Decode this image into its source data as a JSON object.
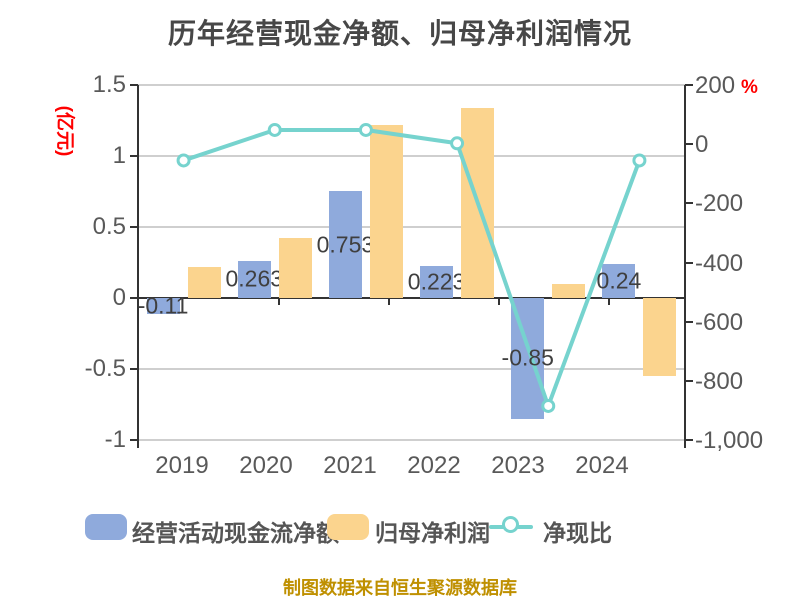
{
  "title": "历年经营现金净额、归母净利润情况",
  "source_note": "制图数据来自恒生聚源数据库",
  "colors": {
    "cashflow_bar": "#8FAADC",
    "profit_bar": "#FBD48E",
    "ratio_line": "#76D3CE",
    "marker_fill": "#FFFFFF",
    "gridline": "#CFCFCF",
    "axis": "#333333",
    "axis_text": "#595959",
    "title_text": "#474747",
    "unit_text": "#FF0000",
    "source_text": "#BF9000"
  },
  "chart_data": {
    "type": "bar",
    "subtype": "grouped bars with overlaid line on secondary axis",
    "categories": [
      "2019",
      "2020",
      "2021",
      "2022",
      "2023",
      "2024"
    ],
    "series": [
      {
        "name": "经营活动现金流净额",
        "type": "bar",
        "axis": "left",
        "values": [
          -0.11,
          0.263,
          0.753,
          0.223,
          -0.85,
          0.24
        ],
        "labels": [
          "-0.11",
          "0.263",
          "0.753",
          "0.223",
          "-0.85",
          "0.24"
        ]
      },
      {
        "name": "归母净利润",
        "type": "bar",
        "axis": "left",
        "values": [
          0.22,
          0.42,
          1.22,
          1.34,
          0.1,
          -0.55
        ],
        "labels": [
          "",
          "",
          "",
          "",
          "",
          ""
        ]
      },
      {
        "name": "净现比",
        "type": "line",
        "axis": "right",
        "values": [
          -55,
          48,
          48,
          3,
          -885,
          -55
        ]
      }
    ],
    "left_axis": {
      "unit": "(亿元)",
      "range": [
        -1,
        1.5
      ],
      "tick_values": [
        1.5,
        1,
        0.5,
        0,
        -0.5,
        -1
      ],
      "tick_labels": [
        "1.5",
        "1",
        "0.5",
        "0",
        "-0.5",
        "-1"
      ]
    },
    "right_axis": {
      "unit": "%",
      "range": [
        -1000,
        200
      ],
      "tick_values": [
        200,
        0,
        -200,
        -400,
        -600,
        -800,
        -1000
      ],
      "tick_labels": [
        "200",
        "0",
        "-200",
        "-400",
        "-600",
        "-800",
        "-1,000"
      ]
    },
    "grid": true,
    "legend_position": "bottom"
  }
}
